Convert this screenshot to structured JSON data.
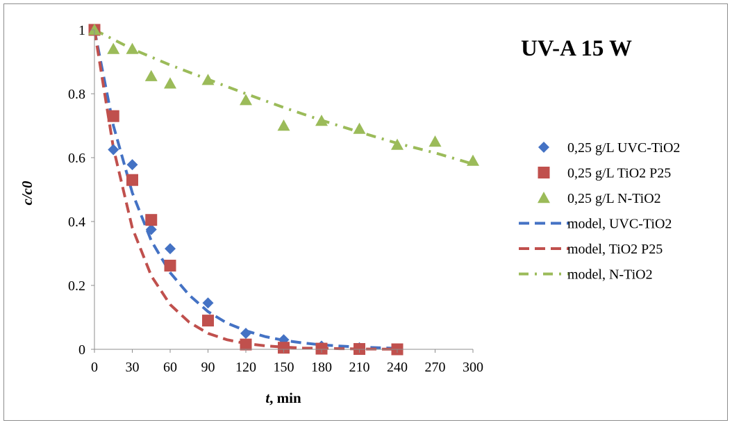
{
  "chart_data": {
    "type": "scatter",
    "title": "UV-A 15 W",
    "xlabel_italic": "t",
    "xlabel_rest": ", min",
    "ylabel": "c/c0",
    "xlim": [
      0,
      300
    ],
    "ylim": [
      0,
      1
    ],
    "x_ticks": [
      "0",
      "30",
      "60",
      "90",
      "120",
      "150",
      "180",
      "210",
      "240",
      "270",
      "300"
    ],
    "y_ticks": [
      "0",
      "0.2",
      "0.4",
      "0.6",
      "0.8",
      "1"
    ],
    "grid": false,
    "legend_position": "right",
    "series": [
      {
        "name": "0,25 g/L UVC-TiO2",
        "kind": "marker",
        "marker": "diamond",
        "color": "#4472C4",
        "x": [
          0,
          15,
          30,
          45,
          60,
          90,
          120,
          150,
          180,
          210,
          240
        ],
        "y": [
          1.0,
          0.625,
          0.578,
          0.375,
          0.315,
          0.145,
          0.05,
          0.03,
          0.01,
          0.005,
          0.0
        ]
      },
      {
        "name": "0,25 g/L TiO2 P25",
        "kind": "marker",
        "marker": "square",
        "color": "#C0504D",
        "x": [
          0,
          15,
          30,
          45,
          60,
          90,
          120,
          150,
          180,
          210,
          240
        ],
        "y": [
          1.0,
          0.73,
          0.53,
          0.405,
          0.262,
          0.09,
          0.015,
          0.005,
          0.002,
          0.001,
          0.0
        ]
      },
      {
        "name": "0,25 g/L N-TiO2",
        "kind": "marker",
        "marker": "triangle",
        "color": "#9BBB59",
        "x": [
          0,
          15,
          30,
          45,
          60,
          90,
          120,
          150,
          180,
          210,
          240,
          270,
          300
        ],
        "y": [
          1.0,
          0.94,
          0.94,
          0.855,
          0.832,
          0.843,
          0.78,
          0.7,
          0.715,
          0.69,
          0.64,
          0.65,
          0.59
        ]
      },
      {
        "name": "model, UVC-TiO2",
        "kind": "line",
        "dash": "dash",
        "color": "#4472C4",
        "x": [
          0,
          15,
          30,
          45,
          60,
          75,
          90,
          105,
          120,
          135,
          150,
          165,
          180,
          195,
          210,
          225,
          240
        ],
        "y": [
          1.0,
          0.7,
          0.49,
          0.34,
          0.24,
          0.17,
          0.118,
          0.082,
          0.058,
          0.04,
          0.028,
          0.02,
          0.014,
          0.01,
          0.007,
          0.005,
          0.003
        ]
      },
      {
        "name": "model, TiO2 P25",
        "kind": "line",
        "dash": "dash",
        "color": "#C0504D",
        "x": [
          0,
          15,
          30,
          45,
          60,
          75,
          90,
          105,
          120,
          135,
          150,
          165,
          180,
          195,
          210,
          225,
          240
        ],
        "y": [
          1.0,
          0.63,
          0.38,
          0.23,
          0.14,
          0.085,
          0.05,
          0.03,
          0.018,
          0.011,
          0.007,
          0.004,
          0.003,
          0.002,
          0.001,
          0.0007,
          0.0005
        ]
      },
      {
        "name": "model, N-TiO2",
        "kind": "line",
        "dash": "dashdot",
        "color": "#9BBB59",
        "x": [
          0,
          30,
          60,
          90,
          120,
          150,
          180,
          210,
          240,
          270,
          300
        ],
        "y": [
          1.0,
          0.94,
          0.89,
          0.845,
          0.8,
          0.757,
          0.717,
          0.68,
          0.645,
          0.615,
          0.58
        ]
      }
    ]
  }
}
